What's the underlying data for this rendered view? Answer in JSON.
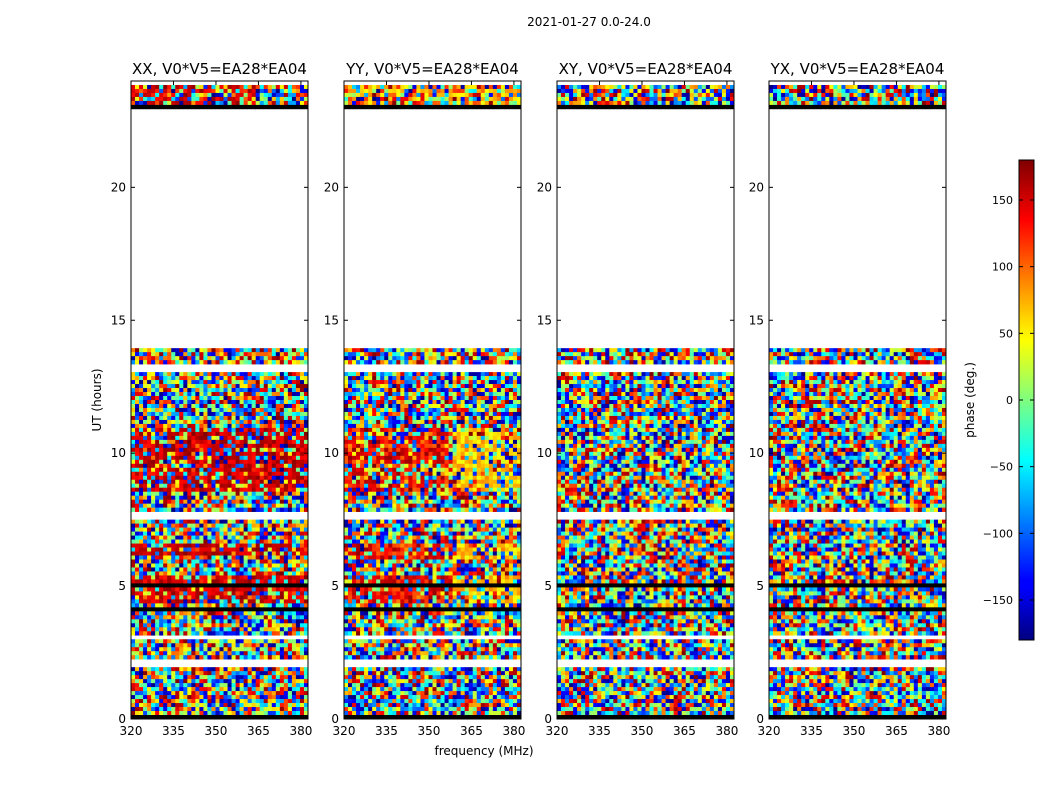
{
  "figure_title": "2021-01-27 0.0-24.0",
  "chart_data": {
    "type": "heatmap",
    "xlabel": "frequency (MHz)",
    "ylabel": "UT (hours)",
    "xlim": [
      320,
      382.5
    ],
    "ylim": [
      0,
      24
    ],
    "x_ticks": [
      320,
      335,
      350,
      365,
      380
    ],
    "y_ticks": [
      0,
      5,
      10,
      15,
      20
    ],
    "panels": [
      {
        "title": "XX, V0*V5=EA28*EA04",
        "polarization": "XX",
        "coherent": "strong"
      },
      {
        "title": "YY, V0*V5=EA28*EA04",
        "polarization": "YY",
        "coherent": "medium"
      },
      {
        "title": "XY, V0*V5=EA28*EA04",
        "polarization": "XY",
        "coherent": "none"
      },
      {
        "title": "YX, V0*V5=EA28*EA04",
        "polarization": "YX",
        "coherent": "none"
      }
    ],
    "data_gaps_hours": [
      [
        14.0,
        22.9
      ],
      [
        13.1,
        13.3
      ],
      [
        7.5,
        7.8
      ],
      [
        3.0,
        3.2
      ],
      [
        2.0,
        2.3
      ],
      [
        8.5,
        8.6
      ]
    ],
    "flagged_black_rows_hours": [
      [
        22.85,
        23.05
      ],
      [
        4.0,
        4.2
      ],
      [
        5.0,
        5.1
      ],
      [
        0.05,
        0.15
      ]
    ],
    "colorbar": {
      "label": "phase (deg.)",
      "min": -180,
      "max": 180,
      "ticks": [
        150,
        100,
        50,
        0,
        -50,
        -100,
        -150
      ],
      "tick_labels": [
        "150",
        "100",
        "50",
        "0",
        "−50",
        "−100",
        "−150"
      ],
      "colormap": "jet"
    }
  }
}
